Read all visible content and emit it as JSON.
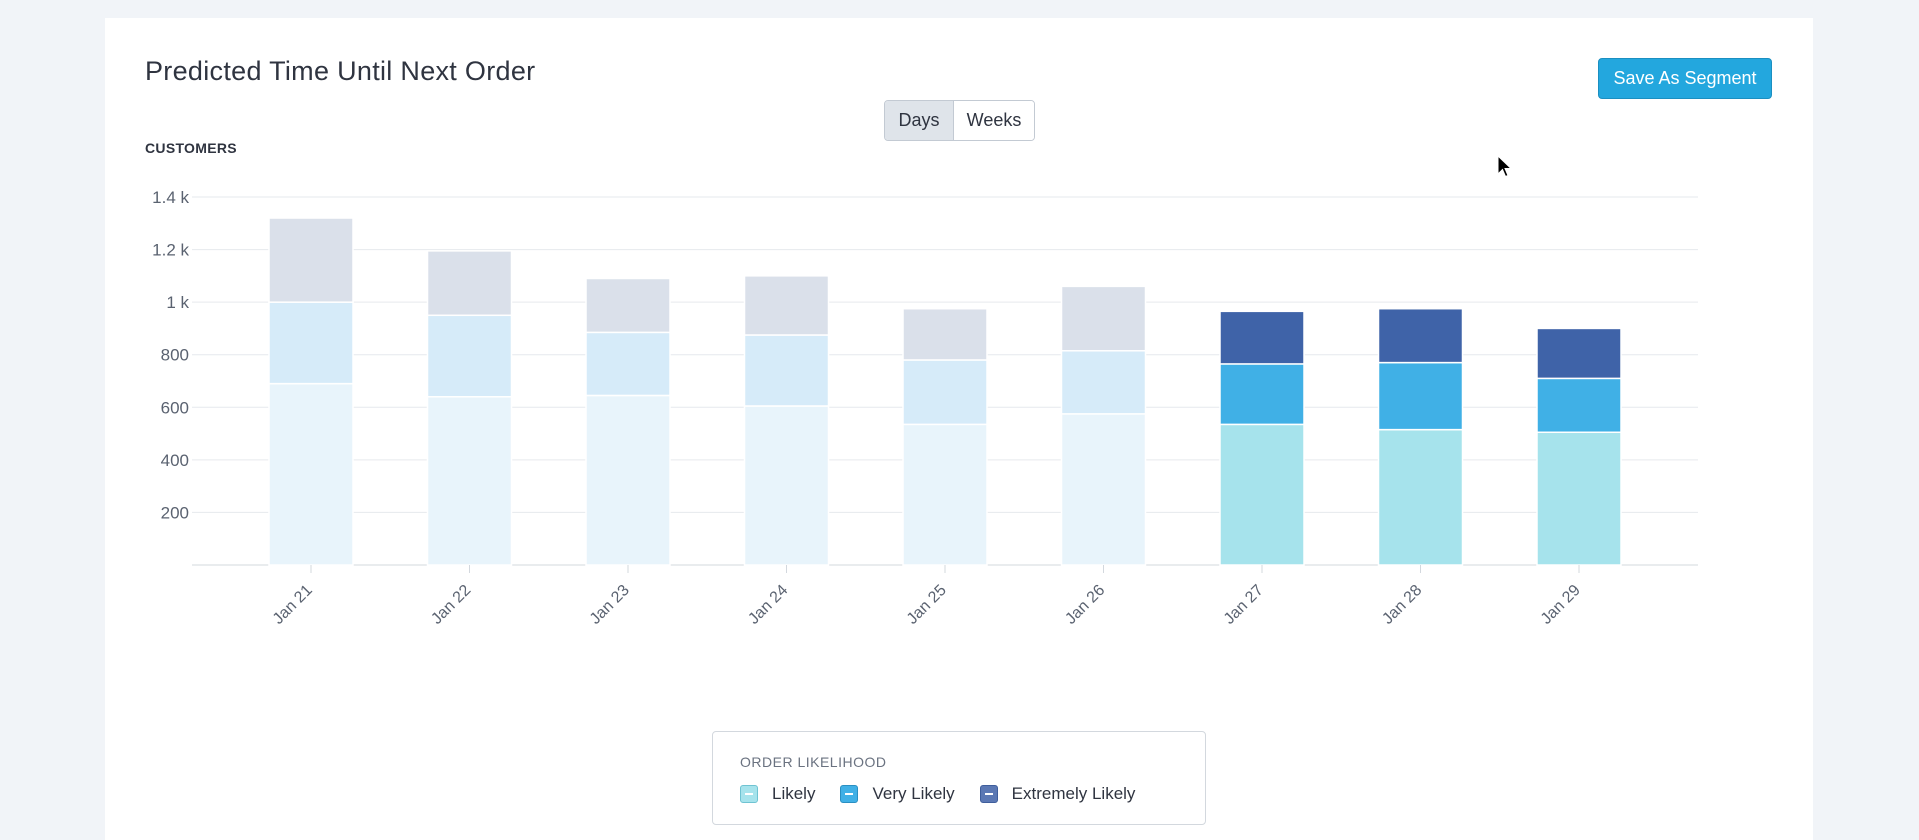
{
  "header": {
    "title": "Predicted Time Until Next Order",
    "save_button": "Save As Segment"
  },
  "toggle": {
    "days": "Days",
    "weeks": "Weeks",
    "selected": "Days"
  },
  "chart_data": {
    "type": "bar",
    "stacked": true,
    "ylabel": "CUSTOMERS",
    "ylim": [
      0,
      1400
    ],
    "y_ticks": [
      "200",
      "400",
      "600",
      "800",
      "1 k",
      "1.2 k",
      "1.4 k"
    ],
    "grid": true,
    "categories": [
      "Jan 21",
      "Jan 22",
      "Jan 23",
      "Jan 24",
      "Jan 25",
      "Jan 26",
      "Jan 27",
      "Jan 28",
      "Jan 29"
    ],
    "series": [
      {
        "name": "Likely",
        "values": [
          690,
          640,
          645,
          605,
          535,
          575,
          535,
          515,
          505
        ]
      },
      {
        "name": "Very Likely",
        "values": [
          310,
          310,
          240,
          270,
          245,
          240,
          230,
          255,
          205
        ]
      },
      {
        "name": "Extremely Likely",
        "values": [
          320,
          245,
          205,
          225,
          195,
          245,
          200,
          205,
          190
        ]
      }
    ],
    "highlighted_categories": [
      "Jan 27",
      "Jan 28",
      "Jan 29"
    ],
    "colors": {
      "Likely": "#a6e3ec",
      "Very Likely": "#40b0e6",
      "Extremely Likely": "#3f63a8",
      "Likely_faded": "#e8f4fb",
      "Very Likely_faded": "#d6ebf9",
      "Extremely Likely_faded": "#dae0ea"
    },
    "legend_position": "bottom"
  },
  "legend": {
    "title": "ORDER LIKELIHOOD",
    "items": [
      "Likely",
      "Very Likely",
      "Extremely Likely"
    ]
  }
}
